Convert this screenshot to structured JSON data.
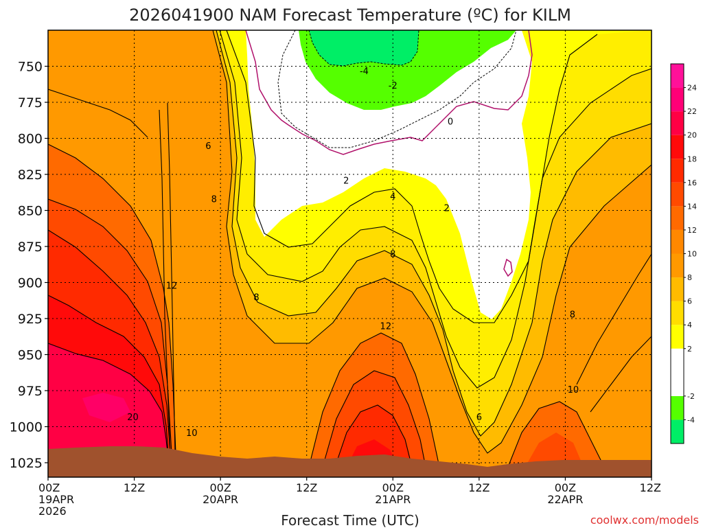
{
  "chart_data": {
    "type": "contour",
    "title": "2026041900 NAM Forecast Temperature (ºC) for KILM",
    "xlabel": "Forecast Time (UTC)",
    "ylabel": "",
    "credit": "coolwx.com/models",
    "x_range_hours": [
      0,
      84
    ],
    "y_range_hpa": [
      725,
      1035
    ],
    "x_ticks": [
      {
        "hour": 0,
        "lines": [
          "00Z",
          "19APR",
          "2026"
        ]
      },
      {
        "hour": 12,
        "lines": [
          "12Z"
        ]
      },
      {
        "hour": 24,
        "lines": [
          "00Z",
          "20APR"
        ]
      },
      {
        "hour": 36,
        "lines": [
          "12Z"
        ]
      },
      {
        "hour": 48,
        "lines": [
          "00Z",
          "21APR"
        ]
      },
      {
        "hour": 60,
        "lines": [
          "12Z"
        ]
      },
      {
        "hour": 72,
        "lines": [
          "00Z",
          "22APR"
        ]
      },
      {
        "hour": 84,
        "lines": [
          "12Z"
        ]
      }
    ],
    "y_ticks": [
      750,
      775,
      800,
      825,
      850,
      875,
      900,
      925,
      950,
      975,
      1000,
      1025
    ],
    "grid": "dotted",
    "colorbar": {
      "levels": [
        -6,
        -4,
        -2,
        0,
        2,
        4,
        6,
        8,
        10,
        12,
        14,
        16,
        18,
        20,
        22,
        24,
        26
      ],
      "tick_labels": [
        "-4",
        "-2",
        "2",
        "4",
        "6",
        "8",
        "10",
        "12",
        "14",
        "16",
        "18",
        "20",
        "22",
        "24"
      ],
      "colors": [
        "#00ee66",
        "#55ff00",
        "#ffffff",
        "#ffffff",
        "#ffff00",
        "#ffdd00",
        "#ffbb00",
        "#ff9900",
        "#ff8800",
        "#ff6a00",
        "#ff4a00",
        "#ff2a00",
        "#ff0a0a",
        "#ff0044",
        "#ff0077",
        "#ff1199"
      ]
    },
    "surface_color": "#a0522d",
    "contour_labels": [
      {
        "text": "-4",
        "hour": 44.0,
        "p": 753
      },
      {
        "text": "-2",
        "hour": 48.0,
        "p": 763
      },
      {
        "text": "0",
        "hour": 56.0,
        "p": 788
      },
      {
        "text": "2",
        "hour": 41.5,
        "p": 829
      },
      {
        "text": "4",
        "hour": 48.0,
        "p": 840
      },
      {
        "text": "2",
        "hour": 55.5,
        "p": 848
      },
      {
        "text": "6",
        "hour": 22.3,
        "p": 805
      },
      {
        "text": "8",
        "hour": 23.1,
        "p": 842
      },
      {
        "text": "8",
        "hour": 29.0,
        "p": 910
      },
      {
        "text": "8",
        "hour": 48.0,
        "p": 880
      },
      {
        "text": "8",
        "hour": 73.0,
        "p": 922
      },
      {
        "text": "12",
        "hour": 17.2,
        "p": 902
      },
      {
        "text": "12",
        "hour": 47.0,
        "p": 930
      },
      {
        "text": "10",
        "hour": 20.0,
        "p": 1004
      },
      {
        "text": "10",
        "hour": 73.1,
        "p": 974
      },
      {
        "text": "20",
        "hour": 11.8,
        "p": 993
      },
      {
        "text": "6",
        "hour": 60.0,
        "p": 993
      }
    ]
  }
}
